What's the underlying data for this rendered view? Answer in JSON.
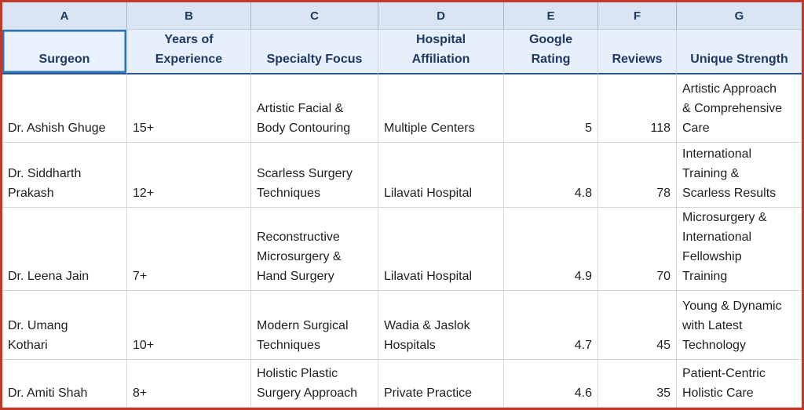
{
  "colors": {
    "frame_border": "#C0392B",
    "selection_border": "#2E75B6",
    "letter_row_bg": "#D9E5F3",
    "header_bg": "#E6EFFA",
    "header_underline": "#2B579A",
    "gridline": "#D6D6D6"
  },
  "sheet": {
    "column_letters": [
      "A",
      "B",
      "C",
      "D",
      "E",
      "F",
      "G"
    ],
    "headers": [
      "Surgeon",
      "Years of Experience",
      "Specialty Focus",
      "Hospital Affiliation",
      "Google Rating",
      "Reviews",
      "Unique Strength"
    ],
    "selected_cell_header": "Surgeon",
    "rows": [
      [
        "Dr. Ashish Ghuge",
        "15+",
        "Artistic Facial & Body Contouring",
        "Multiple Centers",
        5,
        118,
        "Artistic Approach & Comprehensive Care"
      ],
      [
        "Dr. Siddharth Prakash",
        "12+",
        "Scarless Surgery Techniques",
        "Lilavati Hospital",
        4.8,
        78,
        "International Training & Scarless Results"
      ],
      [
        "Dr. Leena Jain",
        "7+",
        "Reconstructive Microsurgery & Hand Surgery",
        "Lilavati Hospital",
        4.9,
        70,
        "Microsurgery & International Fellowship Training"
      ],
      [
        "Dr. Umang Kothari",
        "10+",
        "Modern Surgical Techniques",
        "Wadia & Jaslok Hospitals",
        4.7,
        45,
        "Young & Dynamic with Latest Technology"
      ],
      [
        "Dr. Amiti Shah",
        "8+",
        "Holistic Plastic Surgery Approach",
        "Private Practice",
        4.6,
        35,
        "Patient-Centric Holistic Care"
      ]
    ]
  }
}
